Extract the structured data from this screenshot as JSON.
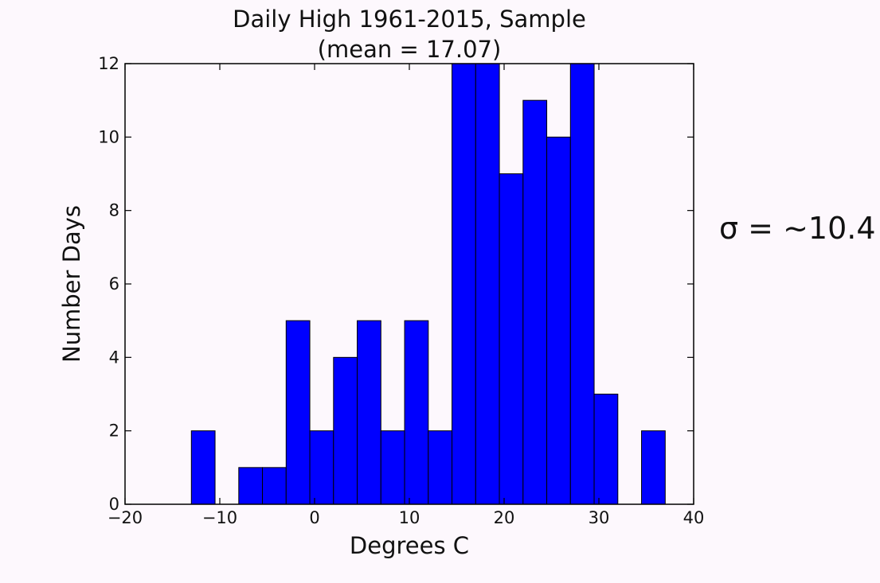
{
  "chart_data": {
    "type": "bar",
    "title": "Daily High 1961-2015, Sample",
    "subtitle": "(mean = 17.07)",
    "xlabel": "Degrees C",
    "ylabel": "Number Days",
    "xlim": [
      -20,
      40
    ],
    "ylim": [
      0,
      12
    ],
    "x_ticks": [
      "−20",
      "−10",
      "0",
      "10",
      "20",
      "30",
      "40"
    ],
    "y_ticks": [
      "0",
      "2",
      "4",
      "6",
      "8",
      "10",
      "12"
    ],
    "bin_width": 2.5,
    "bins": [
      {
        "start": -13.0,
        "count": 2
      },
      {
        "start": -10.5,
        "count": 0
      },
      {
        "start": -8.0,
        "count": 1
      },
      {
        "start": -5.5,
        "count": 1
      },
      {
        "start": -3.0,
        "count": 5
      },
      {
        "start": -0.5,
        "count": 2
      },
      {
        "start": 2.0,
        "count": 4
      },
      {
        "start": 4.5,
        "count": 5
      },
      {
        "start": 7.0,
        "count": 2
      },
      {
        "start": 9.5,
        "count": 5
      },
      {
        "start": 12.0,
        "count": 2
      },
      {
        "start": 14.5,
        "count": 12
      },
      {
        "start": 17.0,
        "count": 12
      },
      {
        "start": 19.5,
        "count": 9
      },
      {
        "start": 22.0,
        "count": 11
      },
      {
        "start": 24.5,
        "count": 10
      },
      {
        "start": 27.0,
        "count": 12
      },
      {
        "start": 29.5,
        "count": 3
      },
      {
        "start": 32.0,
        "count": 0
      },
      {
        "start": 34.5,
        "count": 2
      }
    ],
    "bar_color": "#0000ff",
    "grid": false,
    "legend": "none"
  },
  "annotation": {
    "sigma_text": "σ = ~10.4"
  }
}
